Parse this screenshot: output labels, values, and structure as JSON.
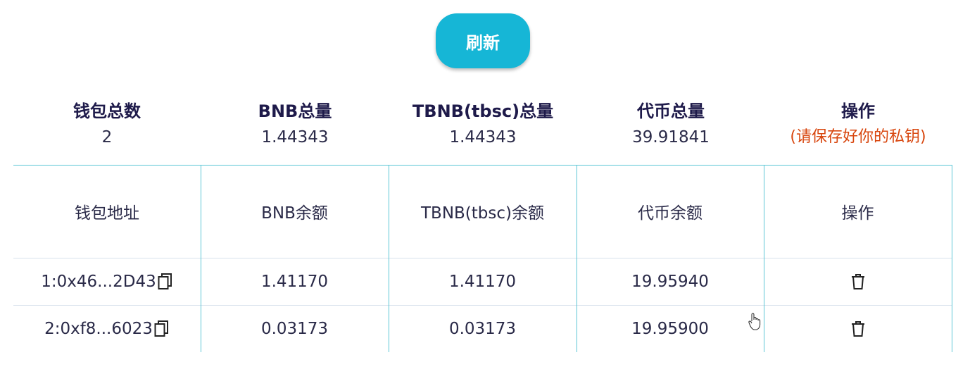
{
  "toolbar": {
    "refresh_label": "刷新"
  },
  "summary": [
    {
      "title": "钱包总数",
      "value": "2"
    },
    {
      "title": "BNB总量",
      "value": "1.44343"
    },
    {
      "title": "TBNB(tbsc)总量",
      "value": "1.44343"
    },
    {
      "title": "代币总量",
      "value": "39.91841"
    },
    {
      "title": "操作",
      "value": "(请保存好你的私钥)"
    }
  ],
  "table": {
    "headers": [
      "钱包地址",
      "BNB余额",
      "TBNB(tbsc)余额",
      "代币余额",
      "操作"
    ],
    "rows": [
      {
        "address": "1:0x46...2D43",
        "bnb": "1.41170",
        "tbnb": "1.41170",
        "token": "19.95940",
        "action_icon": "trash-icon",
        "copy_icon": "copy-icon"
      },
      {
        "address": "2:0xf8...6023",
        "bnb": "0.03173",
        "tbnb": "0.03173",
        "token": "19.95900",
        "action_icon": "trash-icon",
        "copy_icon": "copy-icon"
      }
    ]
  },
  "colors": {
    "accent": "#16b6d6",
    "grid_line": "#5cc6d6",
    "warning_text": "#d8460e",
    "title_text": "#1e1a4a"
  }
}
